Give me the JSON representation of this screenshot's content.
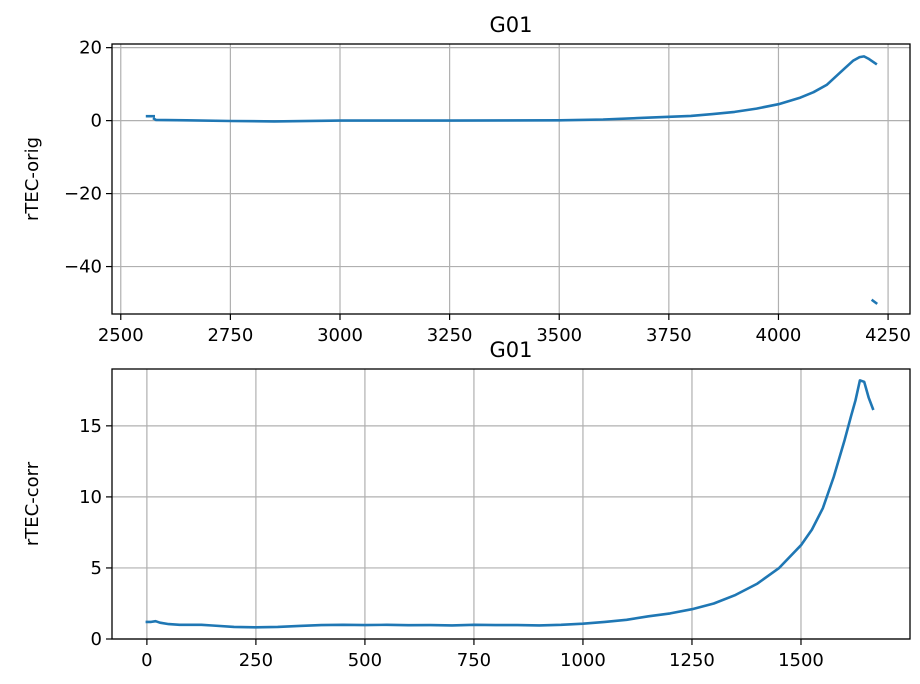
{
  "figure": {
    "background": "#ffffff",
    "line_color": "#1f77b4",
    "grid_color": "#b0b0b0"
  },
  "chart_data": [
    {
      "type": "line",
      "title": "G01",
      "xlabel": "",
      "ylabel": "rTEC-orig",
      "xlim": [
        2480,
        4300
      ],
      "ylim": [
        -53,
        21
      ],
      "xticks": [
        2500,
        2750,
        3000,
        3250,
        3500,
        3750,
        4000,
        4250
      ],
      "yticks": [
        20,
        0,
        -20,
        -40
      ],
      "ytick_labels": [
        "20",
        "0",
        "−20",
        "−40"
      ],
      "grid": true,
      "series": [
        {
          "segments": [
            {
              "x": [
                2560,
                2575
              ],
              "y": [
                1.2,
                1.2
              ]
            },
            {
              "x": [
                2576,
                2580,
                2650,
                2750,
                2850,
                3000,
                3250,
                3500,
                3600,
                3700,
                3800,
                3850,
                3900,
                3950,
                4000,
                4050,
                4080,
                4110,
                4130,
                4150,
                4170,
                4185,
                4195,
                4205,
                4222
              ],
              "y": [
                0.5,
                0.2,
                0.1,
                -0.1,
                -0.2,
                0.0,
                0.0,
                0.1,
                0.3,
                0.8,
                1.3,
                1.8,
                2.4,
                3.3,
                4.5,
                6.3,
                7.8,
                9.8,
                12.0,
                14.2,
                16.4,
                17.4,
                17.6,
                17.0,
                15.6
              ]
            },
            {
              "x": [
                4215,
                4223
              ],
              "y": [
                -49.3,
                -50.0
              ]
            }
          ]
        }
      ]
    },
    {
      "type": "line",
      "title": "G01",
      "xlabel": "",
      "ylabel": "rTEC-corr",
      "xlim": [
        -80,
        1750
      ],
      "ylim": [
        0,
        19
      ],
      "xticks": [
        0,
        250,
        500,
        750,
        1000,
        1250,
        1500
      ],
      "yticks": [
        0,
        5,
        10,
        15
      ],
      "grid": true,
      "series": [
        {
          "segments": [
            {
              "x": [
                0,
                10,
                20,
                30,
                50,
                75,
                100,
                125,
                150,
                200,
                250,
                300,
                350,
                400,
                450,
                500,
                550,
                600,
                650,
                700,
                750,
                800,
                850,
                900,
                950,
                1000,
                1050,
                1100,
                1150,
                1200,
                1250,
                1300,
                1350,
                1400,
                1450,
                1500,
                1525,
                1550,
                1575,
                1600,
                1615,
                1625,
                1635,
                1645,
                1655,
                1665
              ],
              "y": [
                1.2,
                1.2,
                1.25,
                1.15,
                1.05,
                1.0,
                1.0,
                1.0,
                0.95,
                0.85,
                0.82,
                0.85,
                0.92,
                0.98,
                1.0,
                0.98,
                1.0,
                0.97,
                0.98,
                0.96,
                1.0,
                0.98,
                0.98,
                0.96,
                1.0,
                1.08,
                1.2,
                1.35,
                1.6,
                1.8,
                2.1,
                2.5,
                3.1,
                3.9,
                5.0,
                6.6,
                7.7,
                9.2,
                11.4,
                14.0,
                15.7,
                16.8,
                18.2,
                18.1,
                17.0,
                16.2
              ]
            }
          ]
        }
      ]
    }
  ]
}
